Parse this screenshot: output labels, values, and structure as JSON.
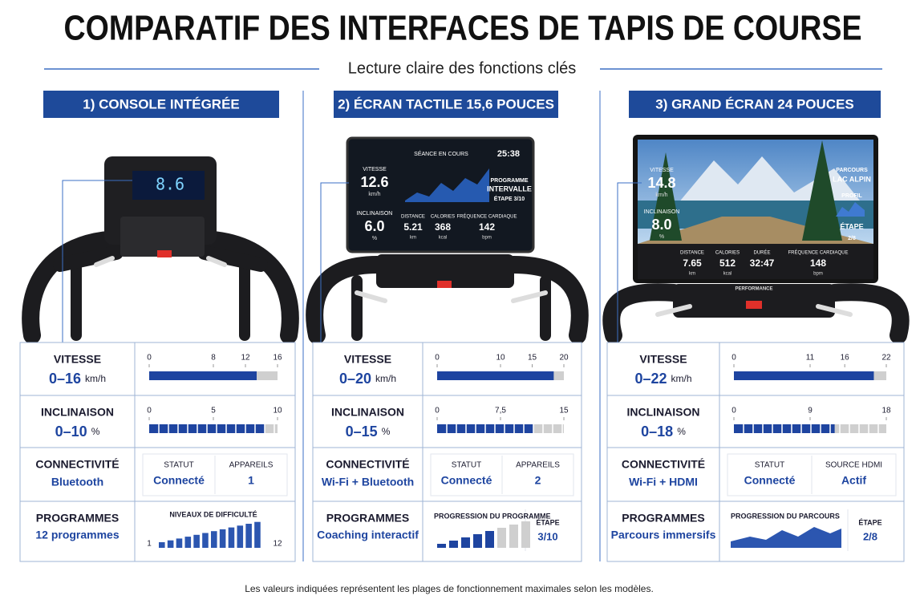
{
  "header": {
    "title": "COMPARATIF DES INTERFACES DE TAPIS DE COURSE",
    "subtitle": "Lecture claire des fonctions clés"
  },
  "columns": [
    {
      "heading": "1) CONSOLE INTÉGRÉE",
      "display": {
        "readout": "8.6"
      },
      "speed": {
        "label": "VITESSE",
        "range": "0–16",
        "unit": "km/h",
        "ticks": [
          0,
          8,
          12,
          16
        ],
        "value": 13.4
      },
      "incline": {
        "label": "INCLINAISON",
        "range": "0–10",
        "unit": "%",
        "ticks": [
          0,
          5,
          10
        ],
        "value": 9
      },
      "connectivity": {
        "label": "CONNECTIVITÉ",
        "value": "Bluetooth",
        "cells": [
          {
            "label": "STATUT",
            "value": "Connecté"
          },
          {
            "label": "APPAREILS",
            "value": "1"
          }
        ]
      },
      "programs": {
        "label": "PROGRAMMES",
        "value": "12 programmes",
        "caption": "NIVEAUX DE DIFFICULTÉ",
        "min": "1",
        "max": "12"
      }
    },
    {
      "heading": "2) ÉCRAN TACTILE 15,6 POUCES",
      "display": {
        "title": "SÉANCE EN COURS",
        "time": "25:38",
        "left": [
          {
            "label": "VITESSE",
            "value": "12.6",
            "unit": "km/h"
          },
          {
            "label": "INCLINAISON",
            "value": "6.0",
            "unit": "%"
          }
        ],
        "side": [
          "PROGRAMME",
          "INTERVALLE",
          "ÉTAPE 3/10"
        ],
        "bottom": [
          {
            "label": "DISTANCE",
            "value": "5.21",
            "unit": "km"
          },
          {
            "label": "CALORIES",
            "value": "368",
            "unit": "kcal"
          },
          {
            "label": "FRÉQUENCE CARDIAQUE",
            "value": "142",
            "unit": "bpm"
          }
        ]
      },
      "speed": {
        "label": "VITESSE",
        "range": "0–20",
        "unit": "km/h",
        "ticks": [
          0,
          10,
          15,
          20
        ],
        "value": 18.4
      },
      "incline": {
        "label": "INCLINAISON",
        "range": "0–15",
        "unit": "%",
        "ticks": [
          0,
          {
            "value": 7.5,
            "label": "7,5"
          },
          15
        ],
        "value": 11.4
      },
      "connectivity": {
        "label": "CONNECTIVITÉ",
        "value": "Wi-Fi + Bluetooth",
        "cells": [
          {
            "label": "STATUT",
            "value": "Connecté"
          },
          {
            "label": "APPAREILS",
            "value": "2"
          }
        ]
      },
      "programs": {
        "label": "PROGRAMMES",
        "value": "Coaching interactif",
        "caption": "PROGRESSION DU PROGRAMME",
        "step_label": "ÉTAPE",
        "step": "3/10"
      }
    },
    {
      "heading": "3) GRAND ÉCRAN 24 POUCES",
      "display": {
        "left": [
          {
            "label": "VITESSE",
            "value": "14.8",
            "unit": "km/h"
          },
          {
            "label": "INCLINAISON",
            "value": "8.0",
            "unit": "%"
          }
        ],
        "side": [
          "PARCOURS",
          "LAC ALPIN",
          "PROFIL",
          "ÉTAPE",
          "2/8"
        ],
        "bottom": [
          {
            "label": "DISTANCE",
            "value": "7.65",
            "unit": "km"
          },
          {
            "label": "CALORIES",
            "value": "512",
            "unit": "kcal"
          },
          {
            "label": "DURÉE",
            "value": "32:47",
            "unit": ""
          },
          {
            "label": "FRÉQUENCE CARDIAQUE",
            "value": "148",
            "unit": "bpm"
          }
        ],
        "brand": "PERFORMANCE"
      },
      "speed": {
        "label": "VITESSE",
        "range": "0–22",
        "unit": "km/h",
        "ticks": [
          0,
          11,
          16,
          22
        ],
        "value": 20.2
      },
      "incline": {
        "label": "INCLINAISON",
        "range": "0–18",
        "unit": "%",
        "ticks": [
          0,
          9,
          18
        ],
        "value": 11.9
      },
      "connectivity": {
        "label": "CONNECTIVITÉ",
        "value": "Wi-Fi + HDMI",
        "cells": [
          {
            "label": "STATUT",
            "value": "Connecté"
          },
          {
            "label": "SOURCE HDMI",
            "value": "Actif"
          }
        ]
      },
      "programs": {
        "label": "PROGRAMMES",
        "value": "Parcours immersifs",
        "caption": "PROGRESSION DU PARCOURS",
        "step_label": "ÉTAPE",
        "step": "2/8"
      }
    }
  ],
  "footer": "Les valeurs indiquées représentent les plages de fonctionnement maximales selon les modèles."
}
